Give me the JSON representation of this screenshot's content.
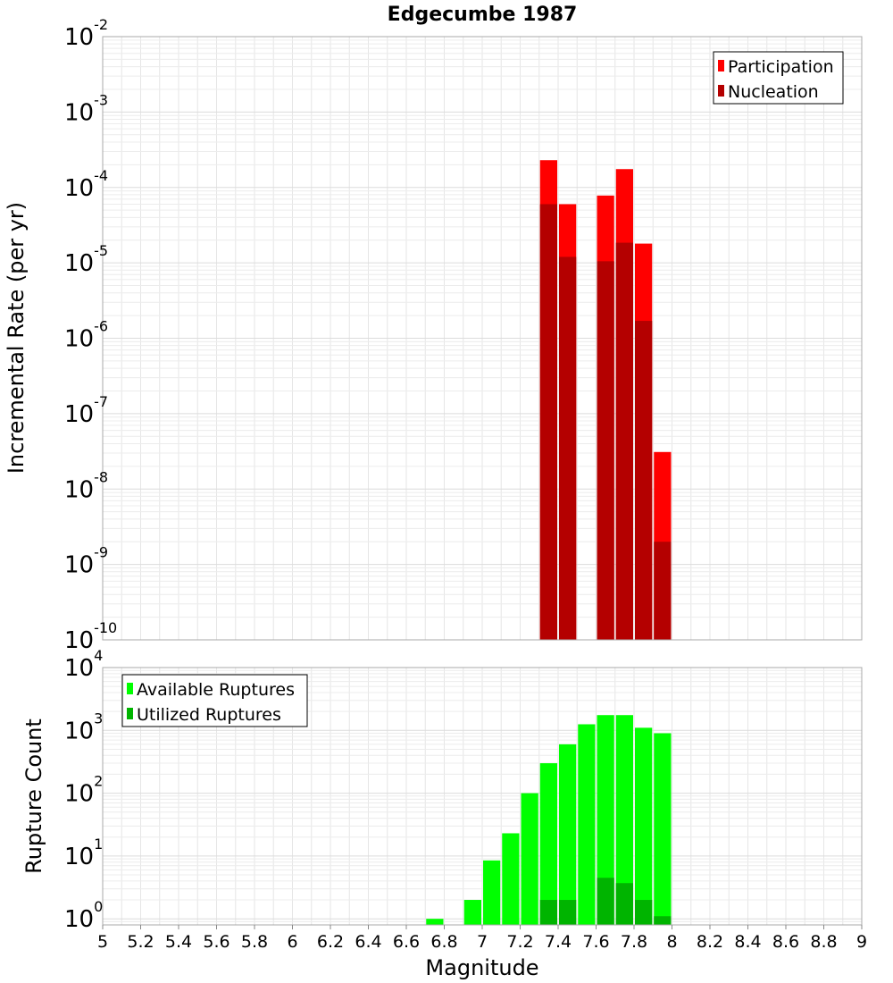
{
  "title": "Edgecumbe 1987",
  "xlabel": "Magnitude",
  "chart_data": [
    {
      "type": "bar",
      "ylabel": "Incremental Rate (per yr)",
      "yscale": "log",
      "ylim": [
        1e-10,
        0.01
      ],
      "xlim": [
        5,
        9
      ],
      "grid": true,
      "legend_position": "top-right",
      "y_ticks": [
        {
          "base": "10",
          "exp": "-10"
        },
        {
          "base": "10",
          "exp": "-9"
        },
        {
          "base": "10",
          "exp": "-8"
        },
        {
          "base": "10",
          "exp": "-7"
        },
        {
          "base": "10",
          "exp": "-6"
        },
        {
          "base": "10",
          "exp": "-5"
        },
        {
          "base": "10",
          "exp": "-4"
        },
        {
          "base": "10",
          "exp": "-3"
        },
        {
          "base": "10",
          "exp": "-2"
        }
      ],
      "x": [
        7.35,
        7.45,
        7.65,
        7.75,
        7.85,
        7.95
      ],
      "series": [
        {
          "name": "Participation",
          "color": "#ff0000",
          "values": [
            0.00023,
            6e-05,
            7.8e-05,
            0.000175,
            1.8e-05,
            3.1e-08
          ]
        },
        {
          "name": "Nucleation",
          "color": "#b40000",
          "values": [
            6e-05,
            1.2e-05,
            1.05e-05,
            1.85e-05,
            1.7e-06,
            2e-09
          ]
        }
      ]
    },
    {
      "type": "bar",
      "ylabel": "Rupture Count",
      "yscale": "log",
      "ylim": [
        0.8,
        10000
      ],
      "xlim": [
        5,
        9
      ],
      "grid": true,
      "legend_position": "top-left",
      "y_ticks": [
        {
          "base": "10",
          "exp": "0"
        },
        {
          "base": "10",
          "exp": "1"
        },
        {
          "base": "10",
          "exp": "2"
        },
        {
          "base": "10",
          "exp": "3"
        },
        {
          "base": "10",
          "exp": "4"
        }
      ],
      "x_tick_labels": [
        "5",
        "5.2",
        "5.4",
        "5.6",
        "5.8",
        "6",
        "6.2",
        "6.4",
        "6.6",
        "6.8",
        "7",
        "7.2",
        "7.4",
        "7.6",
        "7.8",
        "8",
        "8.2",
        "8.4",
        "8.6",
        "8.8",
        "9"
      ],
      "series": [
        {
          "name": "Available Ruptures",
          "color": "#00ff00",
          "x": [
            6.75,
            6.95,
            7.05,
            7.15,
            7.25,
            7.35,
            7.45,
            7.55,
            7.65,
            7.75,
            7.85,
            7.95
          ],
          "values": [
            1,
            2,
            8.5,
            23,
            100,
            300,
            600,
            1250,
            1750,
            1750,
            1100,
            900
          ]
        },
        {
          "name": "Utilized Ruptures",
          "color": "#00b400",
          "x": [
            7.35,
            7.45,
            7.65,
            7.75,
            7.85,
            7.95
          ],
          "values": [
            2,
            2,
            4.5,
            3.7,
            2,
            1.1
          ]
        }
      ]
    }
  ]
}
